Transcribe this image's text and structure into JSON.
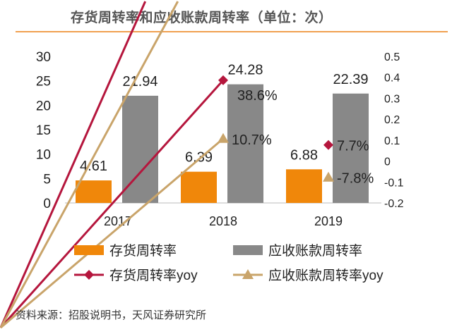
{
  "header": {
    "title": "存货周转率和应收账款周转率（单位：次）"
  },
  "footer": {
    "source": "资料来源：招股说明书，天风证券研究所"
  },
  "chart_data": {
    "type": "bar",
    "title": "存货周转率和应收账款周转率（单位：次）",
    "categories": [
      "2017",
      "2018",
      "2019"
    ],
    "left_axis": {
      "ylim": [
        0,
        30
      ],
      "ticks": [
        "0",
        "5",
        "10",
        "15",
        "20",
        "25",
        "30"
      ]
    },
    "right_axis": {
      "ylim": [
        -0.2,
        0.5
      ],
      "ticks": [
        "-0.2",
        "-0.1",
        "0",
        "0.1",
        "0.2",
        "0.3",
        "0.4",
        "0.5"
      ]
    },
    "bar_series": [
      {
        "name": "存货周转率",
        "color": "#f0870a",
        "values": [
          4.61,
          6.39,
          6.88
        ],
        "labels": [
          "4.61",
          "6.39",
          "6.88"
        ]
      },
      {
        "name": "应收账款周转率",
        "color": "#888888",
        "values": [
          21.94,
          24.28,
          22.39
        ],
        "labels": [
          "21.94",
          "24.28",
          "22.39"
        ]
      }
    ],
    "line_series": [
      {
        "name": "存货周转率yoy",
        "color": "#b5163d",
        "marker": "diamond",
        "values": [
          null,
          0.386,
          0.077
        ],
        "labels": [
          "",
          "38.6%",
          "7.7%"
        ]
      },
      {
        "name": "应收账款周转率yoy",
        "color": "#c9a46a",
        "marker": "triangle",
        "values": [
          null,
          0.107,
          -0.078
        ],
        "labels": [
          "",
          "10.7%",
          "-7.8%"
        ]
      }
    ],
    "legend": "bottom",
    "grid": false
  }
}
